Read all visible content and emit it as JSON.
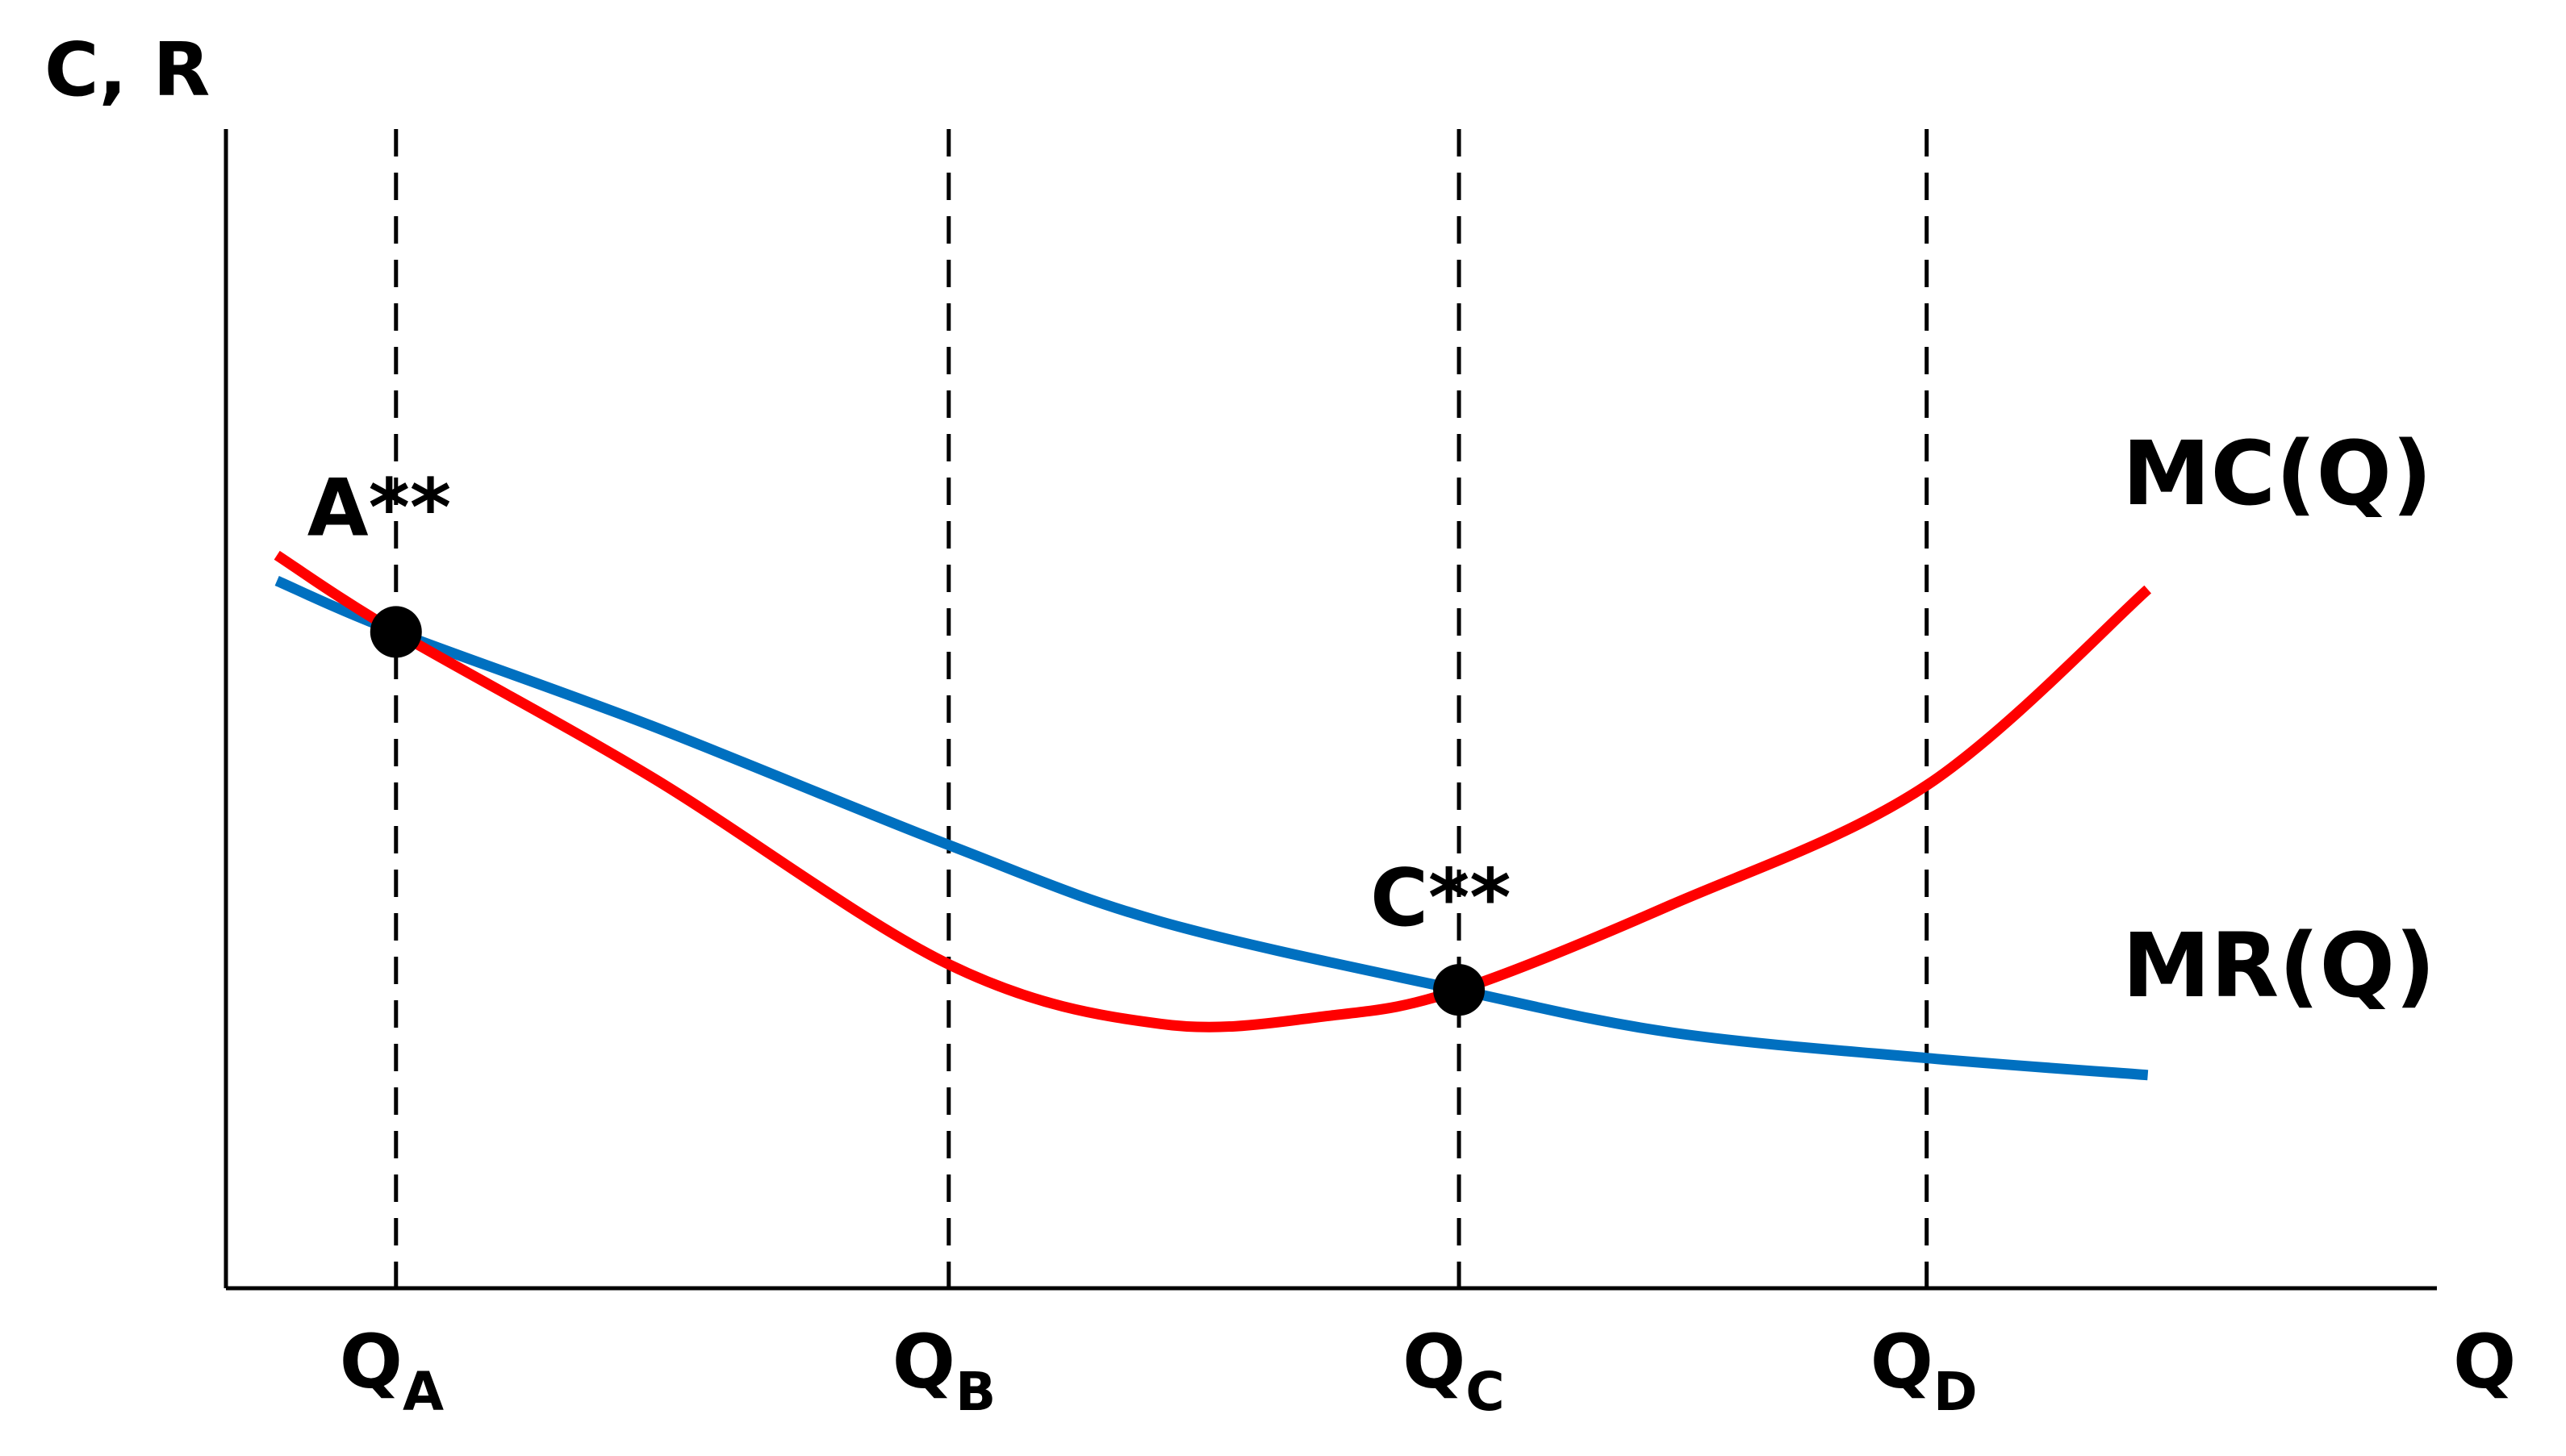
{
  "chart_data": {
    "type": "line",
    "axes": {
      "ylabel": "C, R",
      "xlabel": "Q",
      "x_ticks": [
        {
          "main": "Q",
          "sub": "A",
          "x": 1
        },
        {
          "main": "Q",
          "sub": "B",
          "x": 4.25
        },
        {
          "main": "Q",
          "sub": "C",
          "x": 7.25
        },
        {
          "main": "Q",
          "sub": "D",
          "x": 10
        }
      ],
      "xlim": [
        0,
        13
      ],
      "ylim": [
        0,
        6.8
      ],
      "ticks_values_printed": false
    },
    "series": [
      {
        "name": "MC(Q)",
        "color": "#ff0000",
        "points": [
          [
            0.3,
            4.3
          ],
          [
            1,
            3.85
          ],
          [
            2.5,
            3.0
          ],
          [
            4.25,
            1.9
          ],
          [
            5.5,
            1.55
          ],
          [
            6.5,
            1.6
          ],
          [
            7.25,
            1.75
          ],
          [
            8.5,
            2.25
          ],
          [
            10,
            2.95
          ],
          [
            11.3,
            4.1
          ]
        ]
      },
      {
        "name": "MR(Q)",
        "color": "#0070c0",
        "points": [
          [
            0.3,
            4.15
          ],
          [
            1,
            3.85
          ],
          [
            2.5,
            3.3
          ],
          [
            4.25,
            2.6
          ],
          [
            5.5,
            2.15
          ],
          [
            7.25,
            1.75
          ],
          [
            8.5,
            1.5
          ],
          [
            10,
            1.35
          ],
          [
            11.3,
            1.25
          ]
        ]
      }
    ],
    "points_of_interest": [
      {
        "label": "A**",
        "x": 1,
        "y": 3.85
      },
      {
        "label": "C**",
        "x": 7.25,
        "y": 1.75
      }
    ],
    "grid": false,
    "reference_lines": "vertical dashed lines at QA, QB, QC, QD",
    "legend": "inline labels at right end of curves"
  }
}
